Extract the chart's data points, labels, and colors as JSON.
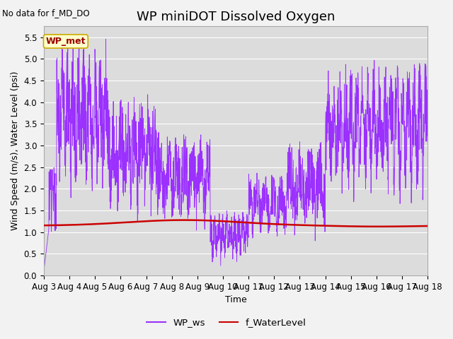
{
  "title": "WP miniDOT Dissolved Oxygen",
  "top_left_text": "No data for f_MD_DO",
  "ylabel": "Wind Speed (m/s), Water Level (psi)",
  "xlabel": "Time",
  "ylim": [
    0.0,
    5.75
  ],
  "yticks": [
    0.0,
    0.5,
    1.0,
    1.5,
    2.0,
    2.5,
    3.0,
    3.5,
    4.0,
    4.5,
    5.0,
    5.5
  ],
  "xtick_labels": [
    "Aug 3",
    "Aug 4",
    "Aug 5",
    "Aug 6",
    "Aug 7",
    "Aug 8",
    "Aug 9",
    "Aug 10",
    "Aug 11",
    "Aug 12",
    "Aug 13",
    "Aug 14",
    "Aug 15",
    "Aug 16",
    "Aug 17",
    "Aug 18"
  ],
  "legend_entries": [
    "WP_ws",
    "f_WaterLevel"
  ],
  "legend_colors": [
    "#9b30ff",
    "#cc0000"
  ],
  "annotation_box_text": "WP_met",
  "annotation_box_color": "#ffffcc",
  "annotation_box_edge_color": "#ccaa00",
  "annotation_text_color": "#990000",
  "ws_color": "#9b30ff",
  "wl_color": "#cc0000",
  "plot_bg_color": "#dcdcdc",
  "fig_bg_color": "#f2f2f2",
  "grid_color": "#ffffff",
  "title_fontsize": 13,
  "label_fontsize": 9,
  "tick_fontsize": 8.5
}
